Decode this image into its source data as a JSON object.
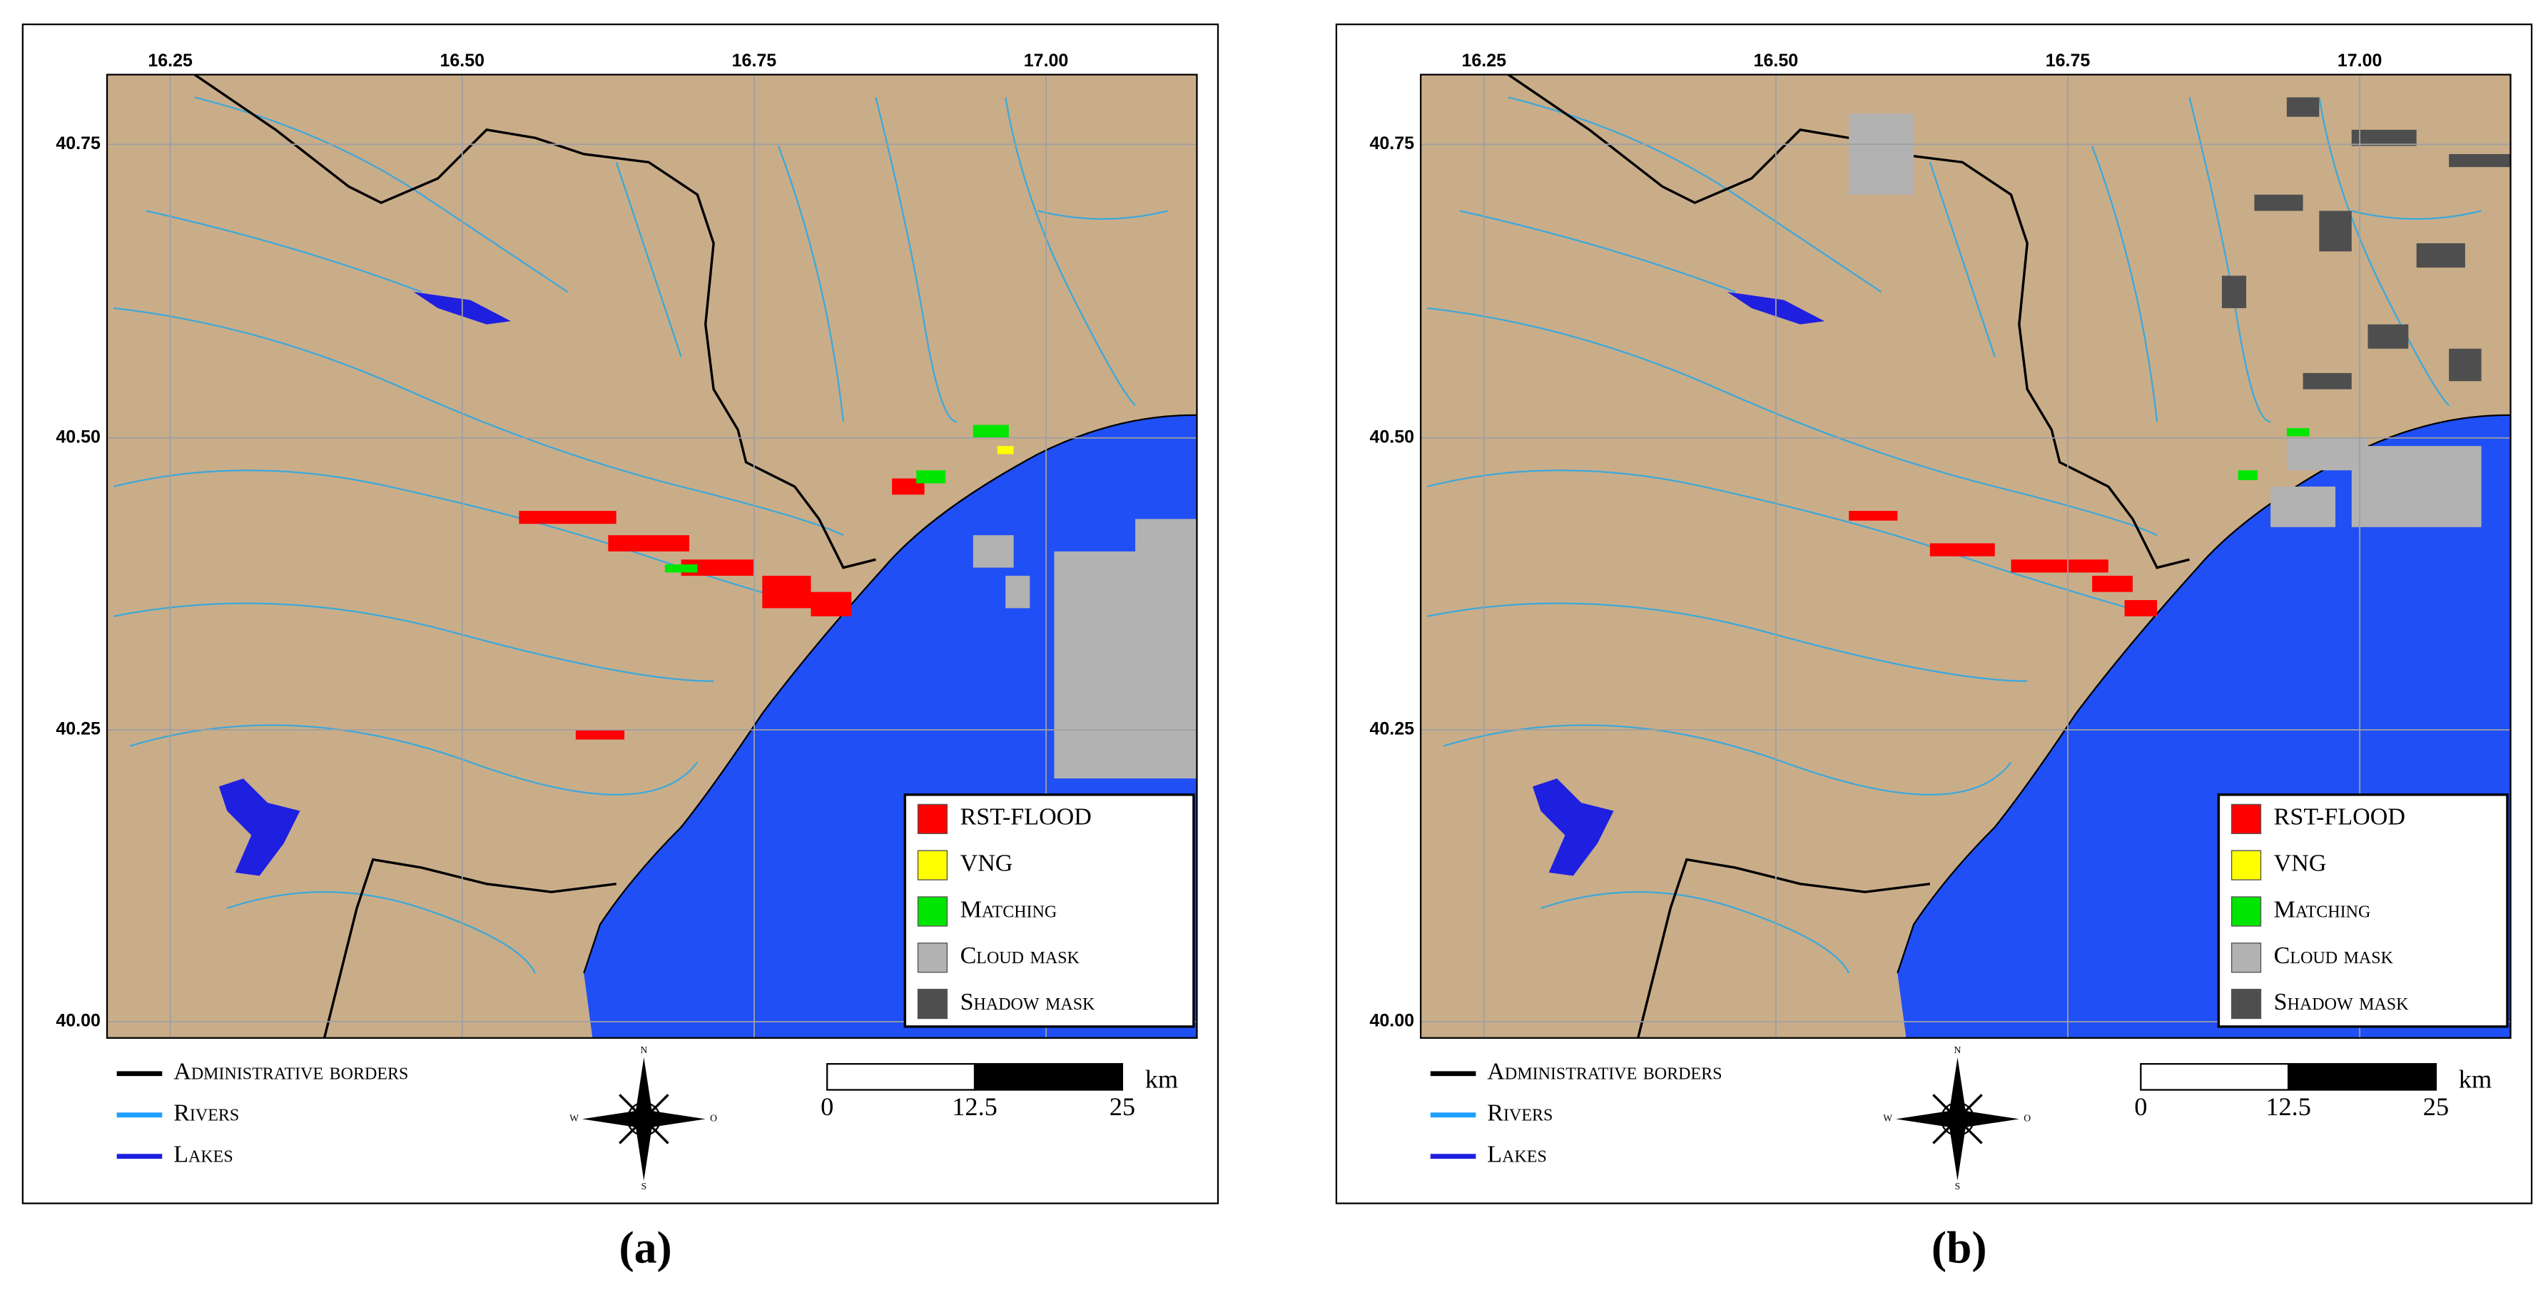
{
  "panels": [
    {
      "label": "(a)",
      "x_ticks": [
        "16.25",
        "16.50",
        "16.75",
        "17.00"
      ],
      "y_ticks": [
        "40.75",
        "40.50",
        "40.25",
        "40.00"
      ],
      "legend": [
        "RST-FLOOD",
        "VNG",
        "Matching",
        "Cloud mask",
        "Shadow mask"
      ],
      "map_legend": [
        "Administrative borders",
        "Rivers",
        "Lakes"
      ],
      "scale": {
        "labels": [
          "0",
          "12.5",
          "25"
        ],
        "unit": "km"
      },
      "compass": [
        "N",
        "S",
        "W",
        "O"
      ]
    },
    {
      "label": "(b)",
      "x_ticks": [
        "16.25",
        "16.50",
        "16.75",
        "17.00"
      ],
      "y_ticks": [
        "40.75",
        "40.50",
        "40.25",
        "40.00"
      ],
      "legend": [
        "RST-FLOOD",
        "VNG",
        "Matching",
        "Cloud mask",
        "Shadow mask"
      ],
      "map_legend": [
        "Administrative borders",
        "Rivers",
        "Lakes"
      ],
      "scale": {
        "labels": [
          "0",
          "12.5",
          "25"
        ],
        "unit": "km"
      },
      "compass": [
        "N",
        "S",
        "W",
        "O"
      ]
    }
  ]
}
